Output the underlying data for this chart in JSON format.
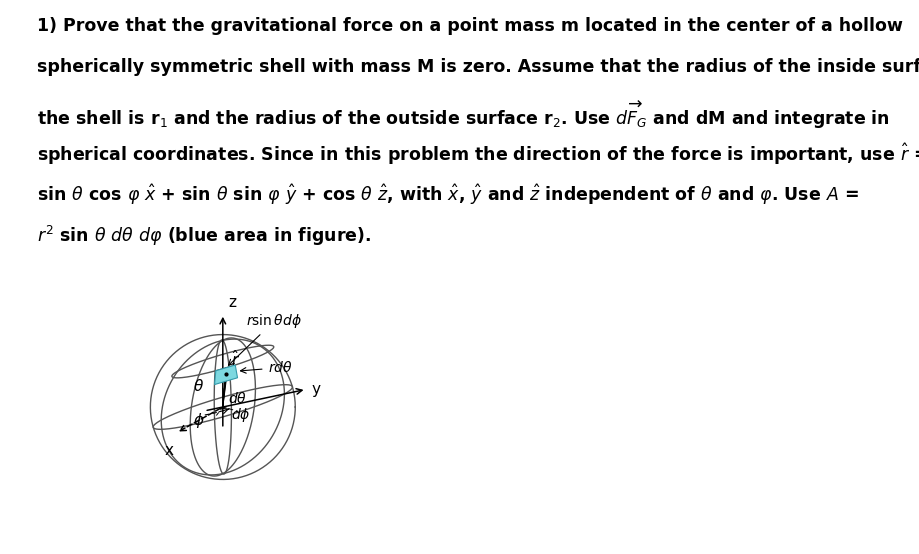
{
  "bg_color": "#ffffff",
  "text_color": "#000000",
  "fig_width": 9.19,
  "fig_height": 5.54,
  "patch_color": "#7dd8e0",
  "patch_edge_color": "#3399aa",
  "sphere_line_color": "#555555",
  "text_lines": [
    "1) Prove that the gravitational force on a point mass m located in the center of a hollow",
    "spherically symmetric shell with mass M is zero. Assume that the radius of the inside surface of",
    "the shell is r$_1$ and the radius of the outside surface r$_2$. Use $\\overrightarrow{dF_G}$ and dM and integrate in",
    "spherical coordinates. Since in this problem the direction of the force is important, use $\\hat{r}$ =",
    "sin $\\theta$ cos $\\varphi$ $\\hat{x}$ + sin $\\theta$ sin $\\varphi$ $\\hat{y}$ + cos $\\theta$ $\\hat{z}$, with $\\hat{x}$, $\\hat{y}$ and $\\hat{z}$ independent of $\\theta$ and $\\varphi$. Use $A$ =",
    "$r^2$ sin $\\theta$ $d\\theta$ $d\\varphi$ (blue area in figure)."
  ]
}
